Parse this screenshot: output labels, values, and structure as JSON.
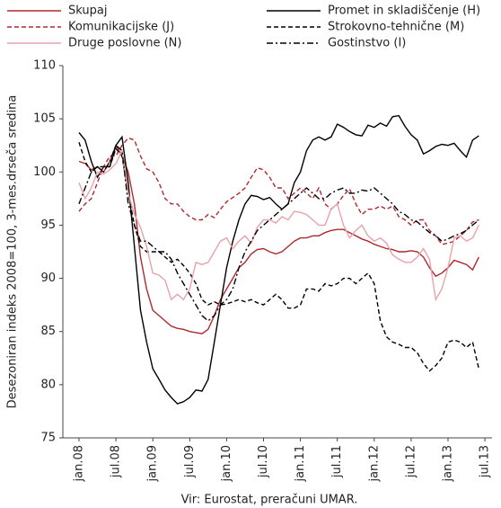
{
  "chart_data": {
    "type": "line",
    "y_label": "Desezoniran indeks 2008=100, 3-mes.drseča sredina",
    "source": "Vir: Eurostat, preračuni UMAR.",
    "categories": [
      "jan.08",
      null,
      null,
      null,
      null,
      null,
      "jul.08",
      null,
      null,
      null,
      null,
      null,
      "jan.09",
      null,
      null,
      null,
      null,
      null,
      "jul.09",
      null,
      null,
      null,
      null,
      null,
      "jan.10",
      null,
      null,
      null,
      null,
      null,
      "jul.10",
      null,
      null,
      null,
      null,
      null,
      "jan.11",
      null,
      null,
      null,
      null,
      null,
      "jul.11",
      null,
      null,
      null,
      null,
      null,
      "jan.12",
      null,
      null,
      null,
      null,
      null,
      "jul.12",
      null,
      null,
      null,
      null,
      null,
      "jan.13",
      null,
      null,
      null,
      null,
      null,
      "jul.13"
    ],
    "ylim": [
      75,
      110
    ],
    "yticks": [
      75,
      80,
      85,
      90,
      95,
      100,
      105,
      110
    ],
    "series": [
      {
        "name": "Skupaj",
        "color": "#b0282e",
        "dash": "solid",
        "values": [
          101,
          100.8,
          100.2,
          100.5,
          100,
          101,
          102.5,
          101.5,
          100,
          97,
          92,
          89,
          87,
          86.5,
          86,
          85.5,
          85.3,
          85.2,
          85,
          84.9,
          84.8,
          85.2,
          86.5,
          88,
          89,
          90,
          91,
          91.5,
          92.3,
          92.7,
          92.8,
          92.5,
          92.3,
          92.5,
          93,
          93.5,
          93.8,
          93.8,
          94,
          94,
          94.3,
          94.5,
          94.6,
          94.6,
          94.3,
          94,
          93.7,
          93.5,
          93.2,
          93,
          92.8,
          92.7,
          92.5,
          92.5,
          92.6,
          92.5,
          92,
          91,
          90.2,
          90.5,
          91,
          91.7,
          91.5,
          91.3,
          90.8,
          92,
          null
        ]
      },
      {
        "name": "Promet in skladiščenje (H)",
        "color": "#000000",
        "dash": "solid",
        "values": [
          103.7,
          103,
          101,
          99.5,
          100.5,
          100.5,
          102.5,
          103.3,
          99,
          93,
          87,
          84,
          81.5,
          80.5,
          79.5,
          78.8,
          78.2,
          78.4,
          78.8,
          79.5,
          79.4,
          80.5,
          84,
          87.5,
          91,
          93.5,
          95.5,
          97,
          97.8,
          97.7,
          97.4,
          97.6,
          97,
          96.5,
          97,
          99,
          100,
          102,
          103,
          103.3,
          103,
          103.3,
          104.5,
          104.2,
          103.8,
          103.5,
          103.4,
          104.4,
          104.2,
          104.6,
          104.3,
          105.2,
          105.3,
          104.3,
          103.5,
          103,
          101.7,
          102,
          102.4,
          102.6,
          102.5,
          102.7,
          102,
          101.4,
          103,
          103.4,
          null
        ]
      },
      {
        "name": "Komunikacijske (J)",
        "color": "#b0282e",
        "dash": "dashed",
        "values": [
          96.3,
          97,
          97.5,
          99,
          100.5,
          101.5,
          101.5,
          102.5,
          103.2,
          103,
          101.5,
          100.3,
          100,
          99,
          97.5,
          97,
          97,
          96.3,
          95.8,
          95.5,
          95.5,
          96,
          95.7,
          96.5,
          97.2,
          97.6,
          98,
          98.5,
          99.5,
          100.4,
          100.2,
          99.5,
          98.5,
          98.5,
          97.5,
          98,
          98.5,
          98,
          97.5,
          98.5,
          97,
          96.5,
          97,
          97.8,
          98.4,
          97,
          96,
          96.5,
          96.5,
          96.8,
          96.5,
          96.8,
          95.8,
          95.5,
          95,
          95.5,
          95.5,
          94.5,
          94,
          93.2,
          93.3,
          93.5,
          94,
          94.5,
          95.3,
          95.5,
          null
        ]
      },
      {
        "name": "Strokovno-tehnične (M)",
        "color": "#000000",
        "dash": "dashed",
        "values": [
          102.8,
          101,
          100,
          100.5,
          100.5,
          100.5,
          102.2,
          101.5,
          98,
          95,
          93,
          92.5,
          92.5,
          92.5,
          92,
          91.5,
          91.8,
          91.2,
          90.5,
          89.5,
          88,
          87.5,
          87.8,
          87.5,
          87.6,
          87.8,
          88,
          87.8,
          88,
          87.7,
          87.5,
          88,
          88.5,
          88,
          87.2,
          87.2,
          87.5,
          89,
          89,
          88.8,
          89.5,
          89.3,
          89.5,
          90,
          90,
          89.5,
          90,
          90.5,
          89.5,
          86,
          84.5,
          84,
          83.8,
          83.5,
          83.5,
          83,
          82,
          81.3,
          81.8,
          82.5,
          84,
          84.2,
          84,
          83.5,
          84,
          81.5,
          null
        ]
      },
      {
        "name": "Druge poslovne (N)",
        "color": "#e8a2aa",
        "dash": "solid",
        "values": [
          99,
          97.5,
          98.5,
          100,
          99.8,
          100.2,
          100.8,
          102,
          98,
          96,
          94.8,
          93,
          90.5,
          90.3,
          89.8,
          88,
          88.5,
          88,
          89,
          91.5,
          91.3,
          91.5,
          92.5,
          93.5,
          93.8,
          92.8,
          93.5,
          94,
          93.3,
          94.8,
          95.5,
          95.5,
          95.2,
          95.8,
          95.5,
          96.3,
          96.2,
          96,
          95.5,
          95,
          95,
          96.5,
          97,
          95,
          93.8,
          94.5,
          95,
          94,
          93.5,
          93.8,
          93.3,
          92.2,
          91.8,
          91.5,
          91.5,
          92,
          92.8,
          91.8,
          88,
          89,
          91,
          93.8,
          94,
          93.5,
          93.8,
          95,
          null
        ]
      },
      {
        "name": "Gostinstvo (I)",
        "color": "#000000",
        "dash": "dashdot",
        "values": [
          97,
          98.5,
          100,
          100.5,
          100,
          101,
          102.5,
          102,
          97,
          95,
          93.5,
          93.5,
          93,
          92.5,
          92.5,
          91.8,
          90.5,
          89.5,
          88.5,
          87.5,
          86.5,
          86,
          86.5,
          87.5,
          88,
          89,
          91,
          92.5,
          93.5,
          94.5,
          95,
          95.5,
          96,
          96.5,
          97,
          97.5,
          98,
          98.5,
          98,
          97.5,
          97.5,
          98,
          98.3,
          98.5,
          98,
          98,
          98.3,
          98.2,
          98.5,
          98,
          97.5,
          97,
          96.3,
          96,
          95.5,
          95.3,
          94.8,
          94.3,
          94,
          93.5,
          93.7,
          94,
          94.2,
          94.5,
          95,
          95.5,
          null
        ]
      }
    ]
  }
}
